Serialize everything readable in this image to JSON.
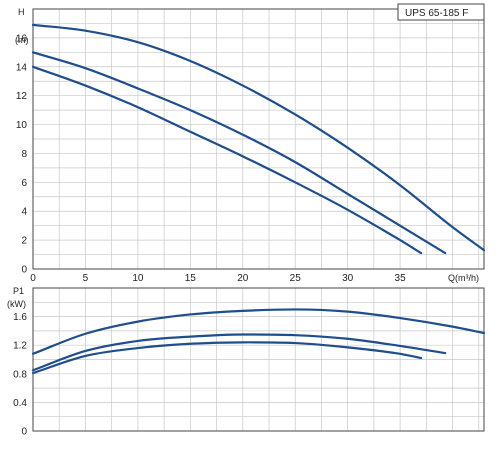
{
  "chart_data": [
    {
      "type": "line",
      "title": "UPS 65-185  F",
      "ylabel": "H",
      "ylabel_unit": "(m)",
      "xlabel": "Q(m³/h)",
      "xlim": [
        0,
        43
      ],
      "ylim": [
        0,
        18
      ],
      "xticks": [
        0,
        5,
        10,
        15,
        20,
        25,
        30,
        35
      ],
      "yticks": [
        0,
        2,
        4,
        6,
        8,
        10,
        12,
        14,
        16
      ],
      "grid": true,
      "line_color": "#1f4e8c",
      "series": [
        {
          "x": [
            0,
            5,
            10,
            15,
            20,
            25,
            30,
            35,
            40,
            43
          ],
          "y": [
            16.9,
            16.5,
            15.7,
            14.4,
            12.7,
            10.7,
            8.4,
            5.8,
            2.9,
            1.3
          ]
        },
        {
          "x": [
            0,
            5,
            10,
            15,
            20,
            25,
            30,
            35,
            39.3
          ],
          "y": [
            15.0,
            13.9,
            12.5,
            11.0,
            9.3,
            7.4,
            5.2,
            3.0,
            1.1
          ]
        },
        {
          "x": [
            0,
            5,
            10,
            15,
            20,
            25,
            30,
            35,
            37
          ],
          "y": [
            14.0,
            12.7,
            11.2,
            9.5,
            7.8,
            6.0,
            4.1,
            2.0,
            1.1
          ]
        }
      ]
    },
    {
      "type": "line",
      "ylabel": "P1",
      "ylabel_unit": "(kW)",
      "xlim": [
        0,
        43
      ],
      "ylim": [
        0,
        2.0
      ],
      "yticks": [
        0,
        0.4,
        0.8,
        1.2,
        1.6
      ],
      "grid": true,
      "line_color": "#1f4e8c",
      "series": [
        {
          "x": [
            0,
            5,
            10,
            15,
            20,
            25,
            30,
            35,
            40,
            43
          ],
          "y": [
            1.08,
            1.36,
            1.53,
            1.63,
            1.68,
            1.7,
            1.67,
            1.58,
            1.46,
            1.37
          ]
        },
        {
          "x": [
            0,
            5,
            10,
            15,
            20,
            25,
            30,
            35,
            39.3
          ],
          "y": [
            0.85,
            1.12,
            1.26,
            1.32,
            1.35,
            1.34,
            1.29,
            1.19,
            1.09
          ]
        },
        {
          "x": [
            0,
            5,
            10,
            15,
            20,
            25,
            30,
            35,
            37
          ],
          "y": [
            0.81,
            1.05,
            1.16,
            1.22,
            1.24,
            1.23,
            1.17,
            1.08,
            1.02
          ]
        }
      ]
    }
  ]
}
